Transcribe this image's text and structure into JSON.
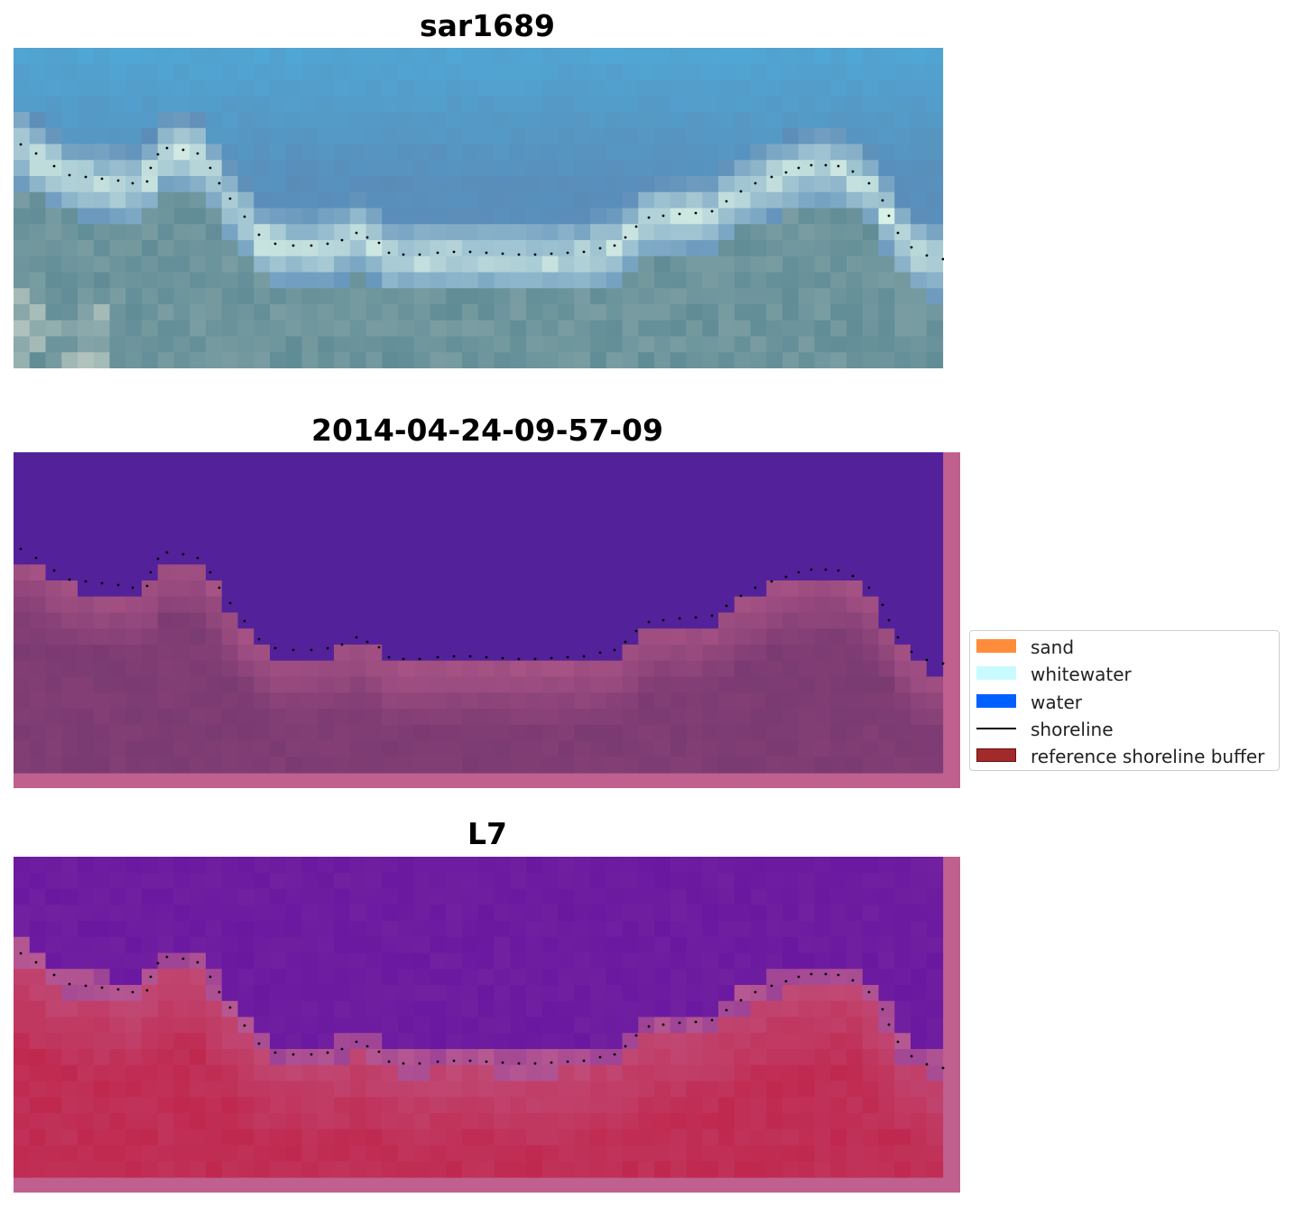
{
  "panels": [
    {
      "title": "sar1689"
    },
    {
      "title": "2014-04-24-09-57-09"
    },
    {
      "title": "L7"
    }
  ],
  "legend": {
    "items": [
      {
        "label": "sand",
        "color": "#ff8c3a",
        "icon": "swatch"
      },
      {
        "label": "whitewater",
        "color": "#c8fbff",
        "icon": "swatch"
      },
      {
        "label": "water",
        "color": "#0060ff",
        "icon": "swatch"
      },
      {
        "label": "shoreline",
        "color": "#000000",
        "icon": "line"
      },
      {
        "label": "reference shoreline buffer",
        "color": "#a12a2a",
        "icon": "swatch"
      }
    ]
  },
  "colors": {
    "rgb_sky": "#4fa8d6",
    "rgb_water": "#5a8cb8",
    "rgb_surf": "#dff6e8",
    "class_water": "#53229a",
    "class_land": "#7a3a72",
    "buffer_overlay": "#c0608f",
    "mndwi_water": "#6a18a0",
    "mndwi_land": "#c0284e"
  }
}
